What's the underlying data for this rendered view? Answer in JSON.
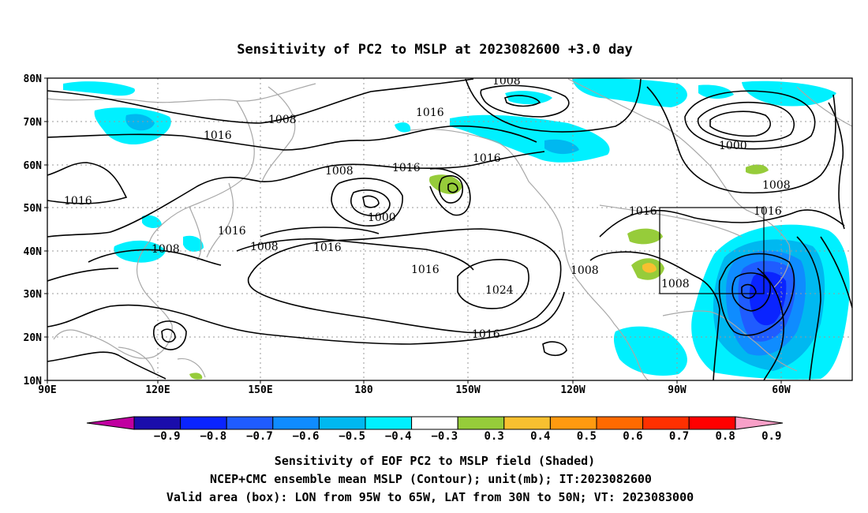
{
  "title": "Sensitivity of PC2 to MSLP at 2023082600 +3.0 day",
  "lat_labels": [
    "80N",
    "70N",
    "60N",
    "50N",
    "40N",
    "30N",
    "20N",
    "10N"
  ],
  "lon_labels": [
    "90E",
    "120E",
    "150E",
    "180",
    "150W",
    "120W",
    "90W",
    "60W"
  ],
  "contour_labels": [
    "1008",
    "1016",
    "1016",
    "1016",
    "1000",
    "1008",
    "1008",
    "1016",
    "1008",
    "1016",
    "1000",
    "1016",
    "1016",
    "1008",
    "1016",
    "1008",
    "1016",
    "1016",
    "1024",
    "1008",
    "1008",
    "1016"
  ],
  "colorbar": {
    "labels": [
      "-0.9",
      "-0.8",
      "-0.7",
      "-0.6",
      "-0.5",
      "-0.4",
      "-0.3",
      "0.3",
      "0.4",
      "0.5",
      "0.6",
      "0.7",
      "0.8",
      "0.9"
    ],
    "colors": [
      "#1a0dab",
      "#0a24ff",
      "#1f5cff",
      "#0f8cff",
      "#00b8f0",
      "#00f0ff",
      "#ffffff",
      "#96cc3a",
      "#f8c030",
      "#ff9a10",
      "#ff6a00",
      "#ff3000",
      "#ff0000"
    ],
    "under_color": "#c000a0",
    "over_color": "#f8a0c8"
  },
  "captions": [
    "Sensitivity of EOF PC2 to MSLP field (Shaded)",
    "NCEP+CMC ensemble mean MSLP (Contour); unit(mb); IT:2023082600",
    "Valid area (box): LON from 95W to 65W, LAT from 30N to 50N; VT: 2023083000"
  ]
}
